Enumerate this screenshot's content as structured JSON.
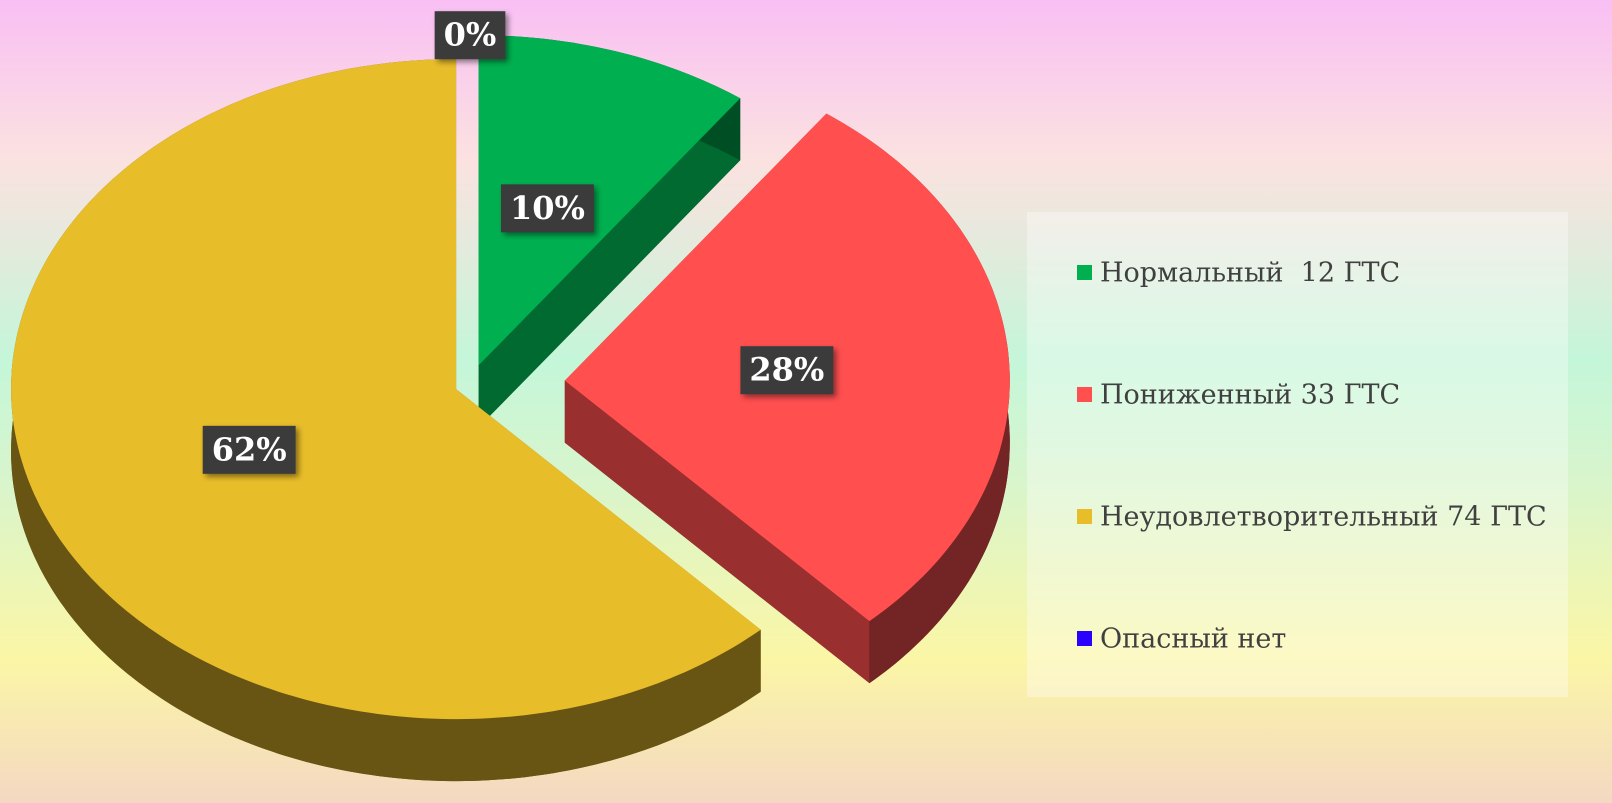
{
  "chart_data": {
    "type": "pie",
    "categories": [
      "Нормальный  12 ГТС",
      "Пониженный 33 ГТС",
      "Неудовлетворительный 74 ГТС",
      "Опасный нет"
    ],
    "values": [
      10,
      28,
      62,
      0
    ],
    "value_labels": [
      "10%",
      "28%",
      "62%",
      "0%"
    ],
    "colors": [
      "#00b050",
      "#ff4f4f",
      "#e8bd2a",
      "#2a00ff"
    ],
    "legend": "right"
  }
}
